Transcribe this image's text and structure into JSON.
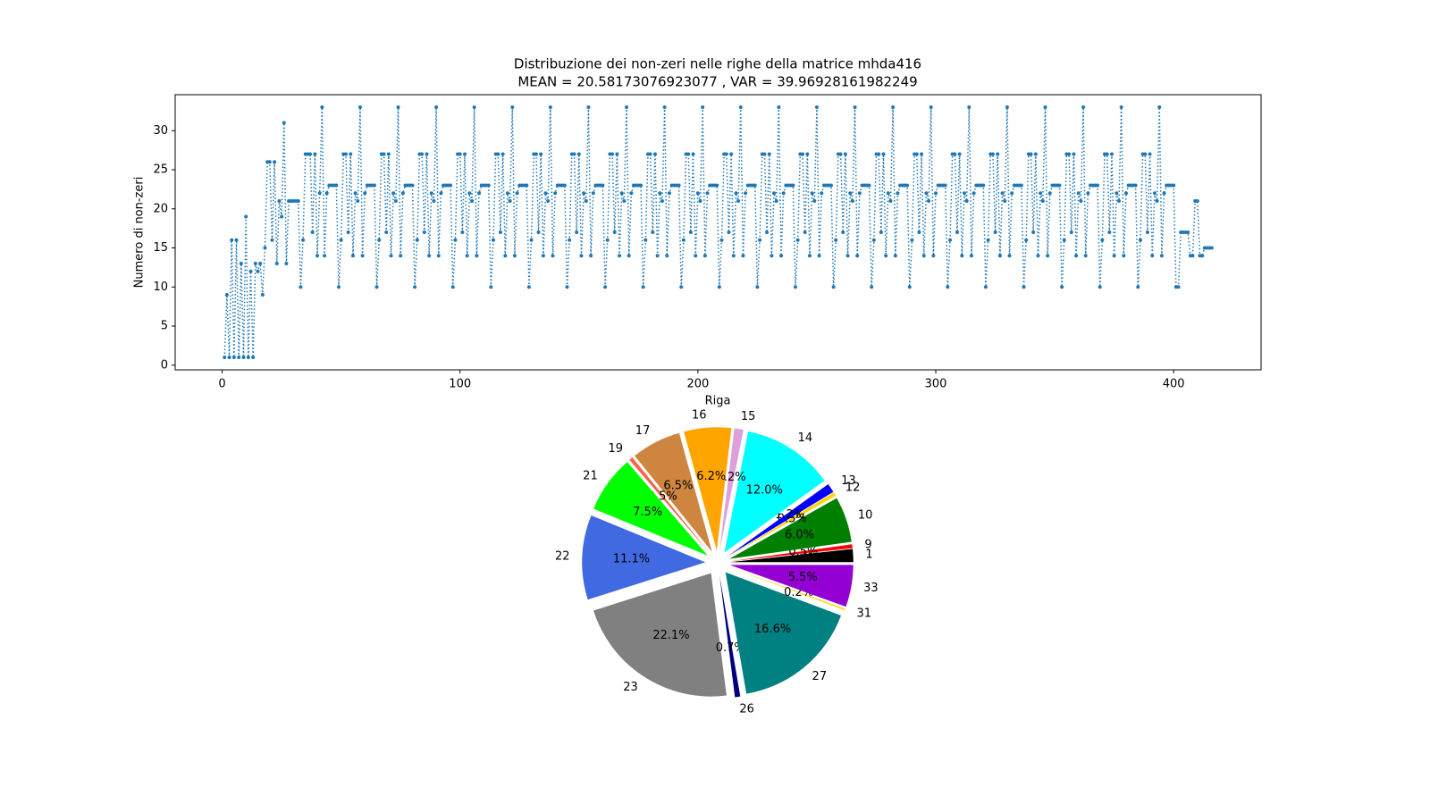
{
  "chart_data": [
    {
      "type": "line",
      "title": "Distribuzione dei non-zeri nelle righe della matrice mhda416",
      "subtitle": "MEAN = 20.58173076923077 , VAR = 39.96928161982249",
      "x_label": "Riga",
      "y_label": "Numero di non-zeri",
      "color": "#1f77b4",
      "line_style": "dotted",
      "marker": "o",
      "xlim": [
        -19.75,
        436.75
      ],
      "xticks": [
        0,
        100,
        200,
        300,
        400
      ],
      "ylim": [
        -0.6,
        34.6
      ],
      "yticks": [
        0,
        5,
        10,
        15,
        20,
        25,
        30
      ],
      "x": [
        1,
        2,
        3,
        4,
        5,
        6,
        7,
        8,
        9,
        10,
        11,
        12,
        13,
        14,
        15,
        16,
        17,
        18,
        19,
        20,
        21,
        22,
        23,
        24,
        25,
        26,
        27,
        28,
        29,
        30,
        31,
        32,
        33,
        34,
        35,
        36,
        37,
        38,
        39,
        40,
        41,
        42,
        43,
        44,
        45,
        46,
        47,
        48,
        49,
        50,
        51,
        52,
        53,
        54,
        55,
        56,
        57,
        58,
        59,
        60,
        61,
        62,
        63,
        64,
        65,
        66,
        67,
        68,
        69,
        70,
        71,
        72,
        73,
        74,
        75,
        76,
        77,
        78,
        79,
        80,
        81,
        82,
        83,
        84,
        85,
        86,
        87,
        88,
        89,
        90,
        91,
        92,
        93,
        94,
        95,
        96,
        97,
        98,
        99,
        100,
        101,
        102,
        103,
        104,
        105,
        106,
        107,
        108,
        109,
        110,
        111,
        112,
        113,
        114,
        115,
        116,
        117,
        118,
        119,
        120,
        121,
        122,
        123,
        124,
        125,
        126,
        127,
        128,
        129,
        130,
        131,
        132,
        133,
        134,
        135,
        136,
        137,
        138,
        139,
        140,
        141,
        142,
        143,
        144,
        145,
        146,
        147,
        148,
        149,
        150,
        151,
        152,
        153,
        154,
        155,
        156,
        157,
        158,
        159,
        160,
        161,
        162,
        163,
        164,
        165,
        166,
        167,
        168,
        169,
        170,
        171,
        172,
        173,
        174,
        175,
        176,
        177,
        178,
        179,
        180,
        181,
        182,
        183,
        184,
        185,
        186,
        187,
        188,
        189,
        190,
        191,
        192,
        193,
        194,
        195,
        196,
        197,
        198,
        199,
        200,
        201,
        202,
        203,
        204,
        205,
        206,
        207,
        208,
        209,
        210,
        211,
        212,
        213,
        214,
        215,
        216,
        217,
        218,
        219,
        220,
        221,
        222,
        223,
        224,
        225,
        226,
        227,
        228,
        229,
        230,
        231,
        232,
        233,
        234,
        235,
        236,
        237,
        238,
        239,
        240,
        241,
        242,
        243,
        244,
        245,
        246,
        247,
        248,
        249,
        250,
        251,
        252,
        253,
        254,
        255,
        256,
        257,
        258,
        259,
        260,
        261,
        262,
        263,
        264,
        265,
        266,
        267,
        268,
        269,
        270,
        271,
        272,
        273,
        274,
        275,
        276,
        277,
        278,
        279,
        280,
        281,
        282,
        283,
        284,
        285,
        286,
        287,
        288,
        289,
        290,
        291,
        292,
        293,
        294,
        295,
        296,
        297,
        298,
        299,
        300,
        301,
        302,
        303,
        304,
        305,
        306,
        307,
        308,
        309,
        310,
        311,
        312,
        313,
        314,
        315,
        316,
        317,
        318,
        319,
        320,
        321,
        322,
        323,
        324,
        325,
        326,
        327,
        328,
        329,
        330,
        331,
        332,
        333,
        334,
        335,
        336,
        337,
        338,
        339,
        340,
        341,
        342,
        343,
        344,
        345,
        346,
        347,
        348,
        349,
        350,
        351,
        352,
        353,
        354,
        355,
        356,
        357,
        358,
        359,
        360,
        361,
        362,
        363,
        364,
        365,
        366,
        367,
        368,
        369,
        370,
        371,
        372,
        373,
        374,
        375,
        376,
        377,
        378,
        379,
        380,
        381,
        382,
        383,
        384,
        385,
        386,
        387,
        388,
        389,
        390,
        391,
        392,
        393,
        394,
        395,
        396,
        397,
        398,
        399,
        400,
        401,
        402,
        403,
        404,
        405,
        406,
        407,
        408,
        409,
        410,
        411,
        412,
        413,
        414,
        415,
        416
      ],
      "values": [
        1,
        9,
        1,
        16,
        1,
        16,
        1,
        13,
        1,
        19,
        1,
        12,
        1,
        13,
        12,
        13,
        9,
        15,
        26,
        26,
        16,
        26,
        13,
        21,
        19,
        31,
        13,
        21,
        21,
        21,
        21,
        21,
        10,
        16,
        27,
        27,
        27,
        17,
        27,
        14,
        22,
        33,
        14,
        22,
        23,
        23,
        23,
        23,
        10,
        16,
        27,
        27,
        17,
        27,
        14,
        22,
        21,
        33,
        14,
        22,
        23,
        23,
        23,
        23,
        10,
        16,
        27,
        27,
        17,
        27,
        14,
        22,
        21,
        33,
        14,
        22,
        23,
        23,
        23,
        23,
        10,
        16,
        27,
        27,
        17,
        27,
        14,
        22,
        21,
        33,
        14,
        22,
        23,
        23,
        23,
        23,
        10,
        16,
        27,
        27,
        17,
        27,
        14,
        22,
        21,
        33,
        14,
        22,
        23,
        23,
        23,
        23,
        10,
        16,
        27,
        27,
        17,
        27,
        14,
        22,
        21,
        33,
        14,
        22,
        23,
        23,
        23,
        23,
        10,
        16,
        27,
        27,
        17,
        27,
        14,
        22,
        21,
        33,
        14,
        22,
        23,
        23,
        23,
        23,
        10,
        16,
        27,
        27,
        17,
        27,
        14,
        22,
        21,
        33,
        14,
        22,
        23,
        23,
        23,
        23,
        10,
        16,
        27,
        27,
        17,
        27,
        14,
        22,
        21,
        33,
        14,
        22,
        23,
        23,
        23,
        23,
        10,
        16,
        27,
        27,
        17,
        27,
        14,
        22,
        21,
        33,
        14,
        22,
        23,
        23,
        23,
        23,
        10,
        16,
        27,
        27,
        17,
        27,
        14,
        22,
        21,
        33,
        14,
        22,
        23,
        23,
        23,
        23,
        10,
        16,
        27,
        27,
        17,
        27,
        14,
        22,
        21,
        33,
        14,
        22,
        23,
        23,
        23,
        23,
        10,
        16,
        27,
        27,
        17,
        27,
        14,
        22,
        21,
        33,
        14,
        22,
        23,
        23,
        23,
        23,
        10,
        16,
        27,
        27,
        17,
        27,
        14,
        22,
        21,
        33,
        14,
        22,
        23,
        23,
        23,
        23,
        10,
        16,
        27,
        27,
        17,
        27,
        14,
        22,
        21,
        33,
        14,
        22,
        23,
        23,
        23,
        23,
        10,
        16,
        27,
        27,
        17,
        27,
        14,
        22,
        21,
        33,
        14,
        22,
        23,
        23,
        23,
        23,
        10,
        16,
        27,
        27,
        17,
        27,
        14,
        22,
        21,
        33,
        14,
        22,
        23,
        23,
        23,
        23,
        10,
        16,
        27,
        27,
        17,
        27,
        14,
        22,
        21,
        33,
        14,
        22,
        23,
        23,
        23,
        23,
        10,
        16,
        27,
        27,
        17,
        27,
        14,
        22,
        21,
        33,
        14,
        22,
        23,
        23,
        23,
        23,
        10,
        16,
        27,
        27,
        17,
        27,
        14,
        22,
        21,
        33,
        14,
        22,
        23,
        23,
        23,
        23,
        10,
        16,
        27,
        27,
        17,
        27,
        14,
        22,
        21,
        33,
        14,
        22,
        23,
        23,
        23,
        23,
        10,
        16,
        27,
        27,
        17,
        27,
        14,
        22,
        21,
        33,
        14,
        22,
        23,
        23,
        23,
        23,
        10,
        16,
        27,
        27,
        17,
        27,
        14,
        22,
        21,
        33,
        14,
        22,
        23,
        23,
        23,
        23,
        10,
        10,
        17,
        17,
        17,
        17,
        14,
        14,
        21,
        21,
        14,
        14,
        15,
        15,
        15,
        15
      ]
    },
    {
      "type": "pie",
      "categories": [
        "1",
        "9",
        "10",
        "12",
        "13",
        "14",
        "15",
        "16",
        "17",
        "19",
        "21",
        "22",
        "23",
        "26",
        "27",
        "31",
        "33"
      ],
      "values": [
        1.7,
        0.5,
        6.0,
        0.5,
        1.2,
        12.0,
        1.2,
        6.2,
        6.5,
        0.5,
        7.5,
        11.1,
        22.1,
        0.7,
        16.6,
        0.2,
        5.5
      ],
      "value_labels": [
        "1.7%",
        "0.5%",
        "6.0%",
        "0.5%",
        "1.2%",
        "12.0%",
        "1.2%",
        "6.2%",
        "6.5%",
        "0.5%",
        "7.5%",
        "11.1%",
        "22.1%",
        "0.7%",
        "16.6%",
        "0.2%",
        "5.5%"
      ],
      "colors": [
        "#000000",
        "#ff0000",
        "#008000",
        "#ffd700",
        "#0000ff",
        "#00ffff",
        "#dda0dd",
        "#ffa500",
        "#cd853f",
        "#ff6347",
        "#00ff00",
        "#4169e1",
        "#808080",
        "#000080",
        "#008080",
        "#ffd700",
        "#9400d3"
      ],
      "start_angle": 0,
      "explode": 0.1
    }
  ]
}
